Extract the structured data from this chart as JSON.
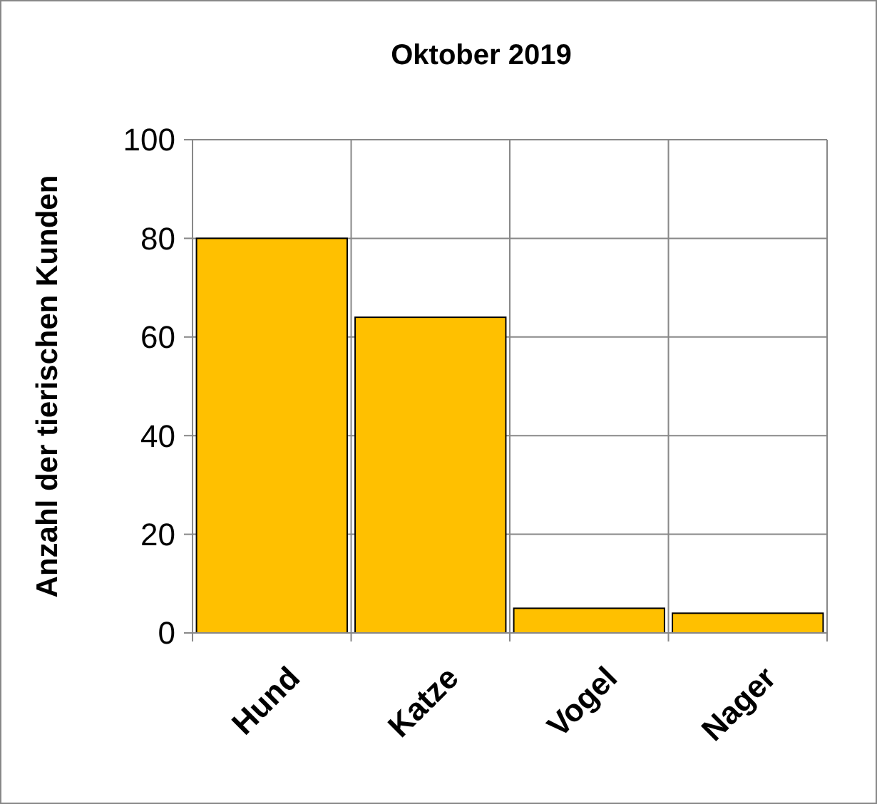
{
  "chart_data": {
    "type": "bar",
    "title": "Oktober 2019",
    "ylabel": "Anzahl der tierischen Kunden",
    "categories": [
      "Hund",
      "Katze",
      "Vogel",
      "Nager"
    ],
    "values": [
      80,
      64,
      5,
      4
    ],
    "color": "#ffc000",
    "ylim": [
      0,
      100
    ],
    "yticks": [
      0,
      20,
      40,
      60,
      80,
      100
    ],
    "grid": true
  }
}
